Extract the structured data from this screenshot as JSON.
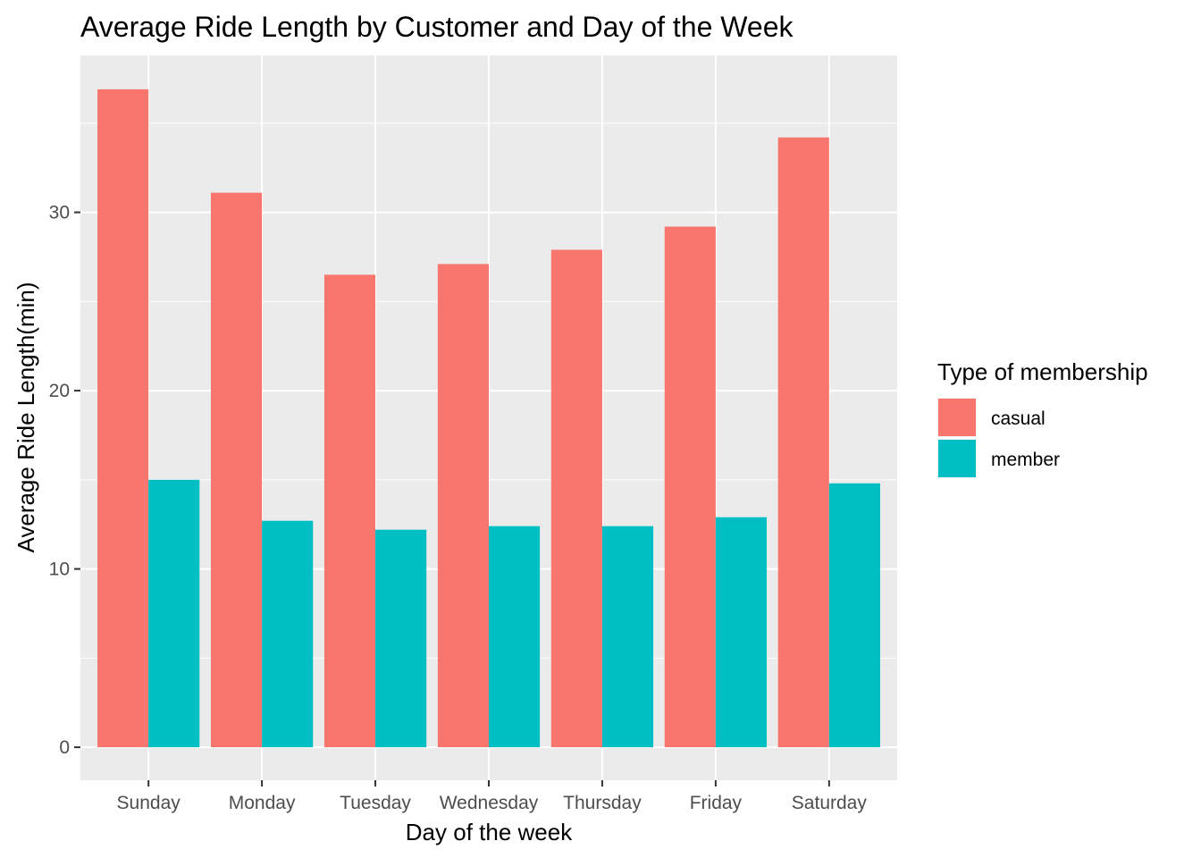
{
  "chart_data": {
    "type": "bar",
    "title": "Average Ride Length by Customer and Day of the Week",
    "xlabel": "Day of the week",
    "ylabel": "Average Ride Length(min)",
    "categories": [
      "Sunday",
      "Monday",
      "Tuesday",
      "Wednesday",
      "Thursday",
      "Friday",
      "Saturday"
    ],
    "series": [
      {
        "name": "casual",
        "color": "#F8766D",
        "values": [
          36.9,
          31.1,
          26.5,
          27.1,
          27.9,
          29.2,
          34.2
        ]
      },
      {
        "name": "member",
        "color": "#00BFC4",
        "values": [
          15.0,
          12.7,
          12.2,
          12.4,
          12.4,
          12.9,
          14.8
        ]
      }
    ],
    "ylim": [
      -1.85,
      38.8
    ],
    "yticks": [
      0,
      10,
      20,
      30
    ],
    "grid": true,
    "panel_color": "#EBEBEB",
    "legend": {
      "title": "Type of membership",
      "position": "right"
    }
  }
}
